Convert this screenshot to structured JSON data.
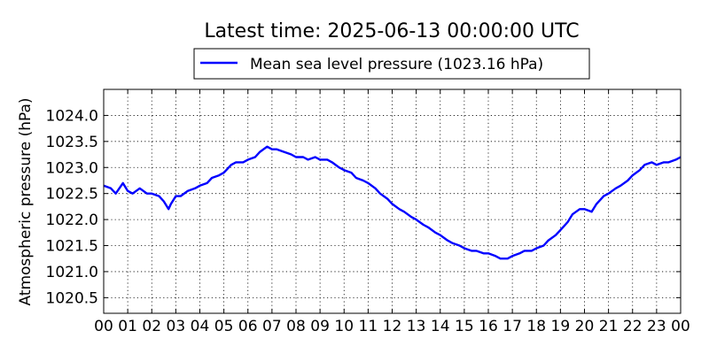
{
  "chart_data": {
    "type": "line",
    "title": "Latest time: 2025-06-13 00:00:00 UTC",
    "xlabel": "",
    "ylabel": "Atmospheric pressure (hPa)",
    "xlim": [
      0,
      24
    ],
    "ylim": [
      1020.2,
      1024.5
    ],
    "grid": true,
    "legend_position": "top-center",
    "x_ticks": [
      0,
      1,
      2,
      3,
      4,
      5,
      6,
      7,
      8,
      9,
      10,
      11,
      12,
      13,
      14,
      15,
      16,
      17,
      18,
      19,
      20,
      21,
      22,
      23,
      24
    ],
    "x_tick_labels": [
      "00",
      "01",
      "02",
      "03",
      "04",
      "05",
      "06",
      "07",
      "08",
      "09",
      "10",
      "11",
      "12",
      "13",
      "14",
      "15",
      "16",
      "17",
      "18",
      "19",
      "20",
      "21",
      "22",
      "23",
      "00"
    ],
    "y_ticks": [
      1020.5,
      1021.0,
      1021.5,
      1022.0,
      1022.5,
      1023.0,
      1023.5,
      1024.0
    ],
    "y_tick_labels": [
      "1020.5",
      "1021.0",
      "1021.5",
      "1022.0",
      "1022.5",
      "1023.0",
      "1023.5",
      "1024.0"
    ],
    "series": [
      {
        "name": "Mean sea level pressure (1023.16 hPa)",
        "color": "#0000ff",
        "x": [
          0.0,
          0.3,
          0.5,
          0.8,
          1.0,
          1.2,
          1.5,
          1.8,
          2.0,
          2.3,
          2.5,
          2.7,
          2.8,
          3.0,
          3.2,
          3.5,
          3.8,
          4.0,
          4.3,
          4.5,
          4.8,
          5.0,
          5.3,
          5.5,
          5.8,
          6.0,
          6.3,
          6.5,
          6.8,
          7.0,
          7.2,
          7.5,
          7.8,
          8.0,
          8.3,
          8.5,
          8.8,
          9.0,
          9.3,
          9.5,
          9.8,
          10.0,
          10.3,
          10.5,
          10.8,
          11.0,
          11.3,
          11.5,
          11.8,
          12.0,
          12.3,
          12.5,
          12.8,
          13.0,
          13.3,
          13.5,
          13.8,
          14.0,
          14.3,
          14.5,
          14.8,
          15.0,
          15.3,
          15.5,
          15.8,
          16.0,
          16.3,
          16.5,
          16.8,
          17.0,
          17.3,
          17.5,
          17.8,
          18.0,
          18.3,
          18.5,
          18.8,
          19.0,
          19.3,
          19.5,
          19.8,
          20.0,
          20.3,
          20.5,
          20.8,
          21.0,
          21.3,
          21.5,
          21.8,
          22.0,
          22.3,
          22.5,
          22.8,
          23.0,
          23.3,
          23.5,
          23.8,
          24.0
        ],
        "values": [
          1022.65,
          1022.6,
          1022.5,
          1022.7,
          1022.55,
          1022.5,
          1022.6,
          1022.5,
          1022.5,
          1022.45,
          1022.35,
          1022.2,
          1022.3,
          1022.45,
          1022.45,
          1022.55,
          1022.6,
          1022.65,
          1022.7,
          1022.8,
          1022.85,
          1022.9,
          1023.05,
          1023.1,
          1023.1,
          1023.15,
          1023.2,
          1023.3,
          1023.4,
          1023.35,
          1023.35,
          1023.3,
          1023.25,
          1023.2,
          1023.2,
          1023.15,
          1023.2,
          1023.15,
          1023.15,
          1023.1,
          1023.0,
          1022.95,
          1022.9,
          1022.8,
          1022.75,
          1022.7,
          1022.6,
          1022.5,
          1022.4,
          1022.3,
          1022.2,
          1022.15,
          1022.05,
          1022.0,
          1021.9,
          1021.85,
          1021.75,
          1021.7,
          1021.6,
          1021.55,
          1021.5,
          1021.45,
          1021.4,
          1021.4,
          1021.35,
          1021.35,
          1021.3,
          1021.25,
          1021.25,
          1021.3,
          1021.35,
          1021.4,
          1021.4,
          1021.45,
          1021.5,
          1021.6,
          1021.7,
          1021.8,
          1021.95,
          1022.1,
          1022.2,
          1022.2,
          1022.15,
          1022.3,
          1022.45,
          1022.5,
          1022.6,
          1022.65,
          1022.75,
          1022.85,
          1022.95,
          1023.05,
          1023.1,
          1023.05,
          1023.1,
          1023.1,
          1023.15,
          1023.2
        ]
      }
    ]
  }
}
